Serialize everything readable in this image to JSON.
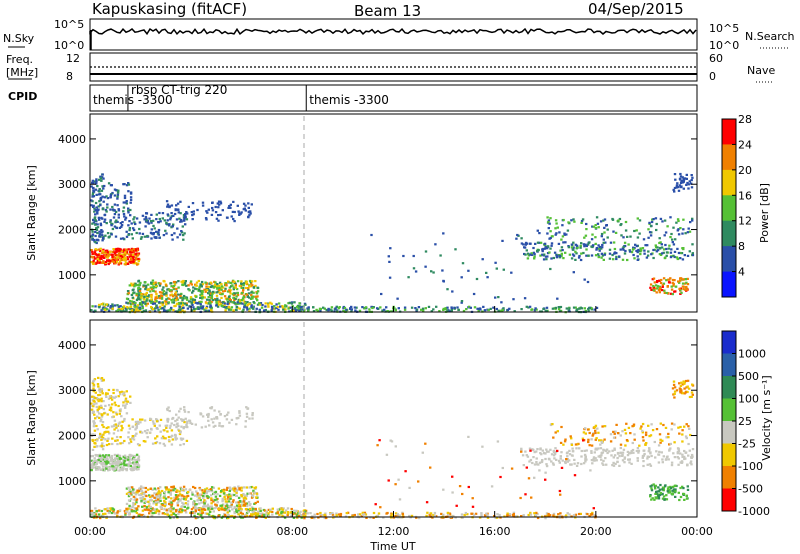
{
  "header": {
    "station": "Kapuskasing (fitACF)",
    "beam": "Beam 13",
    "date": "04/Sep/2015"
  },
  "status_panels": {
    "nsky": {
      "label": "N.Sky",
      "ticks": [
        "10^5",
        "10^0"
      ],
      "right_ticks": [
        "10^5",
        "10^0"
      ],
      "right_label": "N.Search"
    },
    "freq": {
      "label_line1": "Freq.",
      "label_line2": "[MHz]",
      "ticks": [
        "12",
        "8"
      ],
      "right_ticks": [
        "60",
        "0"
      ],
      "right_label": "Nave"
    },
    "cpid": {
      "label": "CPID",
      "segments": [
        {
          "name": "themis -3300",
          "start_hour": 0.0
        },
        {
          "name": "rbsp CT-trig 220",
          "start_hour": 1.5
        },
        {
          "name": "themis -3300",
          "start_hour": 8.55
        }
      ]
    }
  },
  "chart_data": [
    {
      "type": "heatmap",
      "name": "power",
      "ylabel": "Slant Range [km]",
      "yticks": [
        1000,
        2000,
        3000,
        4000
      ],
      "ylim": [
        180,
        4550
      ],
      "xlim_hours": [
        0,
        24
      ],
      "colorbar": {
        "label": "Power [dB]",
        "ticks": [
          "4",
          "8",
          "12",
          "16",
          "20",
          "24",
          "28"
        ],
        "colors": [
          "#0a14ff",
          "#2a4fa8",
          "#2f8a60",
          "#55c035",
          "#f0c800",
          "#f08000",
          "#ff0000"
        ]
      }
    },
    {
      "type": "heatmap",
      "name": "velocity",
      "ylabel": "Slant Range [km]",
      "yticks": [
        1000,
        2000,
        3000,
        4000
      ],
      "ylim": [
        180,
        4550
      ],
      "xlim_hours": [
        0,
        24
      ],
      "colorbar": {
        "label": "Velocity [m s⁻¹]",
        "ticks": [
          "1000",
          "500",
          "100",
          "25",
          "-25",
          "-100",
          "-500",
          "-1000"
        ],
        "colors": [
          "#1a2ccc",
          "#2a60a8",
          "#2f8a55",
          "#55c035",
          "#c8c8c0",
          "#f0c800",
          "#f08000",
          "#ff0000"
        ]
      }
    }
  ],
  "time_axis": {
    "label": "Time UT",
    "ticks": [
      "00:00",
      "04:00",
      "08:00",
      "12:00",
      "16:00",
      "20:00",
      "00:00"
    ]
  }
}
